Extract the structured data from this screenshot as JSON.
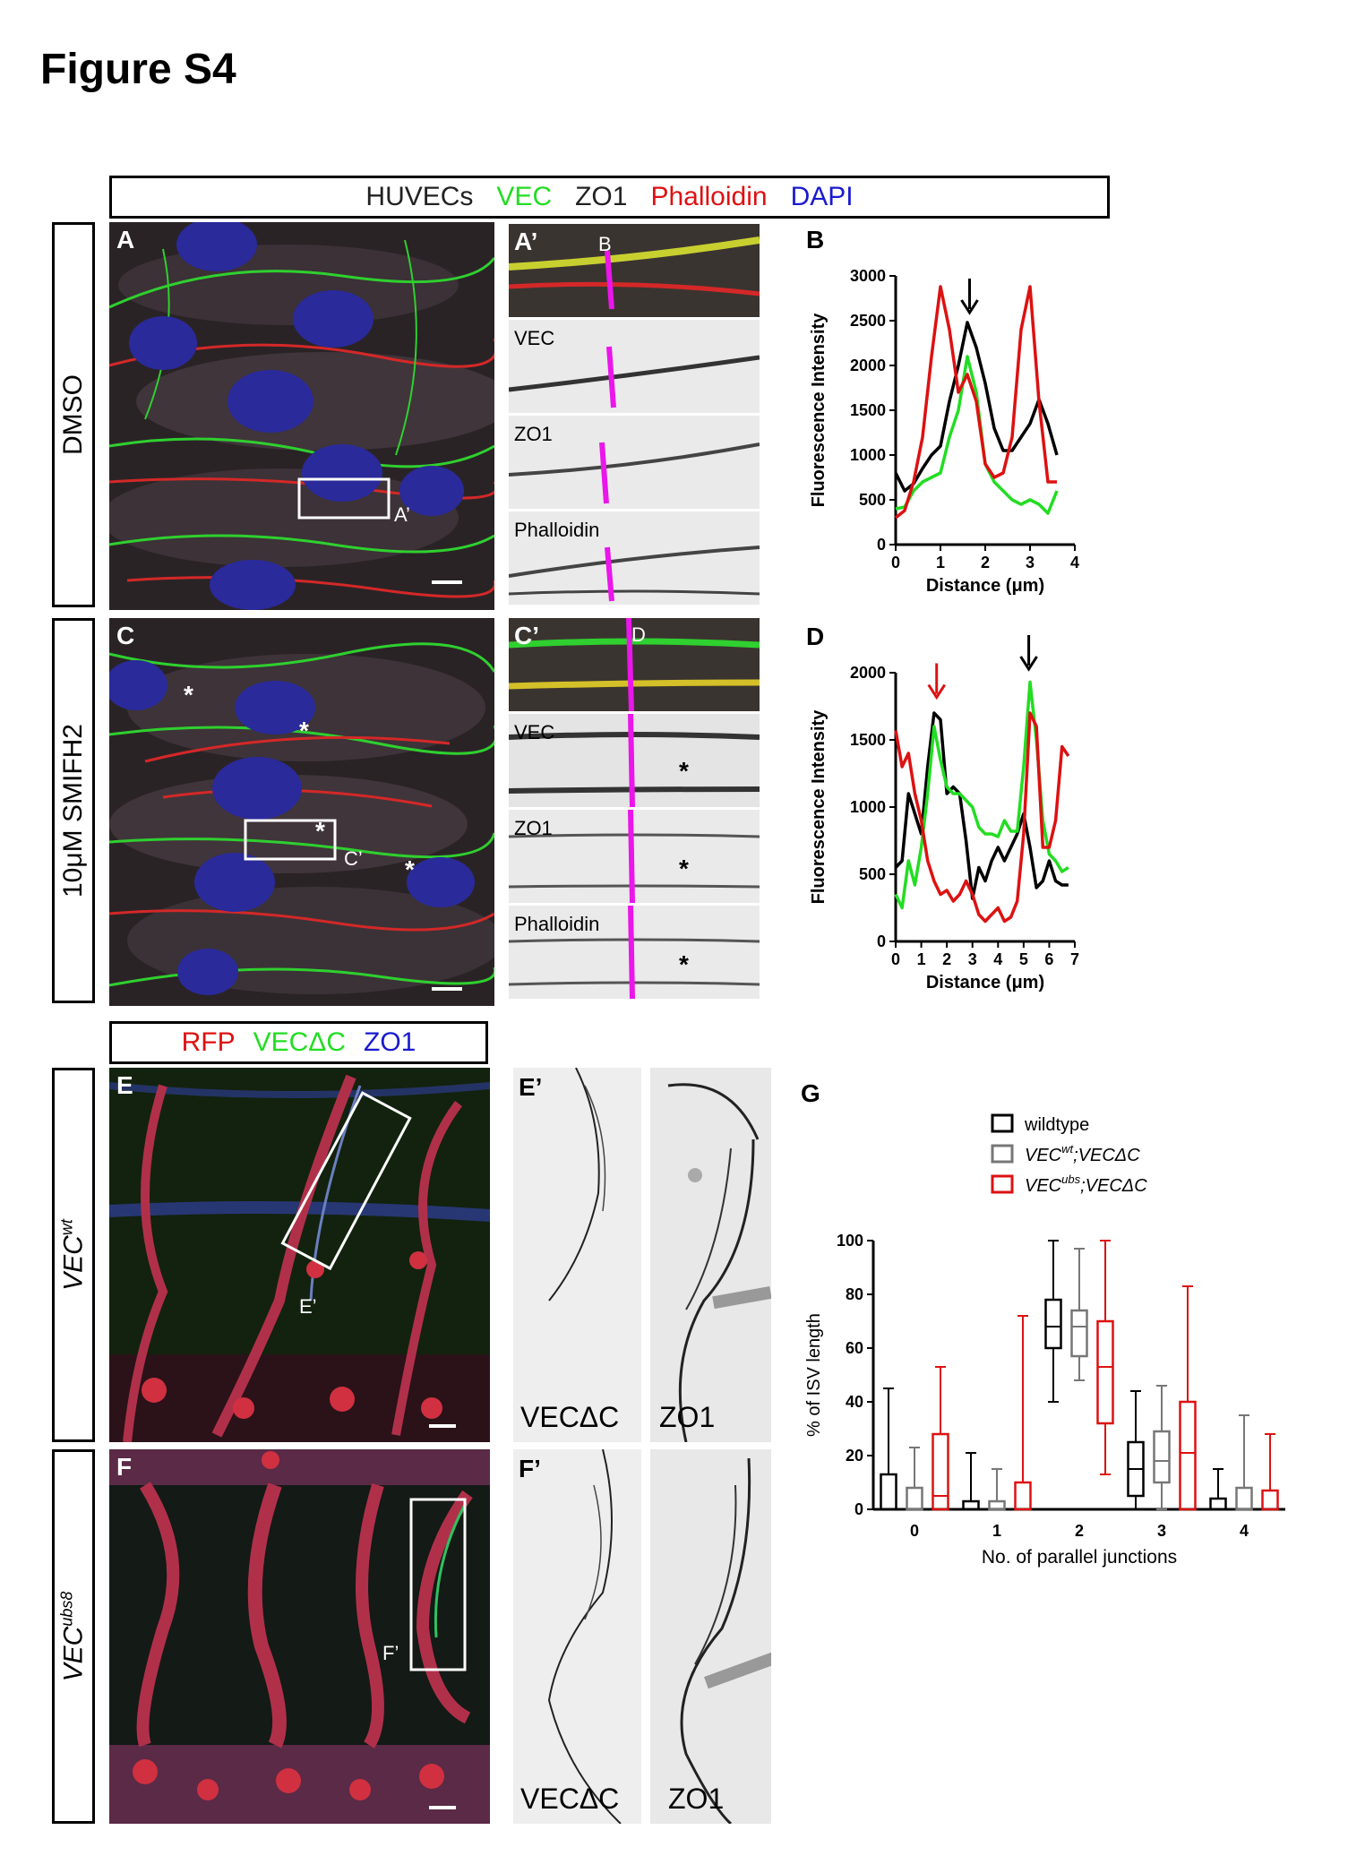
{
  "figure_title": "Figure S4",
  "top_header": {
    "items": [
      {
        "text": "HUVECs",
        "color": "#222222"
      },
      {
        "text": "VEC",
        "color": "#22dd22"
      },
      {
        "text": "ZO1",
        "color": "#222222"
      },
      {
        "text": "Phalloidin",
        "color": "#dd1111"
      },
      {
        "text": "DAPI",
        "color": "#1a1ad0"
      }
    ]
  },
  "row_labels": {
    "dmso": "DMSO",
    "smifh2": "10μM SMIFH2"
  },
  "panels": {
    "A": "A",
    "A_prime": "A’",
    "A_box": "A’",
    "B_marker": "B",
    "C": "C",
    "C_prime": "C’",
    "C_box": "C’",
    "D_marker": "D",
    "E": "E",
    "E_prime": "E’",
    "E_box": "E’",
    "F": "F",
    "F_prime": "F’",
    "F_box": "F’",
    "star": "*"
  },
  "inset_labels": {
    "vec": "VEC",
    "zo1": "ZO1",
    "phalloidin": "Phalloidin"
  },
  "zebrafish_header": {
    "items": [
      {
        "text": "RFP",
        "color": "#dd1111"
      },
      {
        "text": "VECΔC",
        "color": "#22dd22"
      },
      {
        "text": "ZO1",
        "color": "#1a1ad0"
      }
    ]
  },
  "zebrafish_rows": {
    "e_main": "VEC",
    "e_sup": "wt",
    "f_main": "VEC",
    "f_sup": "ubs8"
  },
  "bw_captions": {
    "e_left": "VECΔC",
    "e_right": "ZO1",
    "f_left": "VECΔC",
    "f_right": "ZO1"
  },
  "chart_data": [
    {
      "type": "line",
      "panel": "B",
      "xlabel": "Distance (μm)",
      "ylabel": "Fluorescence Intensity",
      "xlim": [
        0,
        4
      ],
      "ylim": [
        0,
        3000
      ],
      "xticks": [
        0,
        1,
        2,
        3,
        4
      ],
      "yticks": [
        0,
        500,
        1000,
        1500,
        2000,
        2500,
        3000
      ],
      "arrows": [
        {
          "x": 1.65,
          "y": 2550,
          "color": "#000000"
        }
      ],
      "series": [
        {
          "color": "#000000",
          "x": [
            0,
            0.2,
            0.4,
            0.6,
            0.8,
            1.0,
            1.2,
            1.4,
            1.6,
            1.8,
            2.0,
            2.2,
            2.4,
            2.6,
            2.8,
            3.0,
            3.2,
            3.4,
            3.6
          ],
          "y": [
            800,
            600,
            680,
            850,
            1000,
            1100,
            1600,
            2000,
            2480,
            2200,
            1800,
            1300,
            1050,
            1050,
            1200,
            1350,
            1620,
            1350,
            1000
          ]
        },
        {
          "color": "#22dd22",
          "x": [
            0,
            0.2,
            0.4,
            0.6,
            0.8,
            1.0,
            1.2,
            1.4,
            1.6,
            1.8,
            2.0,
            2.2,
            2.4,
            2.6,
            2.8,
            3.0,
            3.2,
            3.4,
            3.6
          ],
          "y": [
            400,
            420,
            600,
            700,
            750,
            800,
            1200,
            1500,
            2100,
            1700,
            900,
            700,
            600,
            500,
            450,
            500,
            450,
            350,
            600
          ]
        },
        {
          "color": "#dd1111",
          "x": [
            0,
            0.2,
            0.4,
            0.6,
            0.8,
            1.0,
            1.2,
            1.4,
            1.6,
            1.8,
            2.0,
            2.2,
            2.4,
            2.6,
            2.8,
            3.0,
            3.2,
            3.4,
            3.6
          ],
          "y": [
            300,
            380,
            700,
            1200,
            2100,
            2880,
            2400,
            1700,
            1900,
            1600,
            900,
            750,
            800,
            1200,
            2400,
            2880,
            1600,
            700,
            700
          ]
        }
      ]
    },
    {
      "type": "line",
      "panel": "D",
      "xlabel": "Distance (μm)",
      "ylabel": "Fluorescence Intensity",
      "xlim": [
        0,
        7
      ],
      "ylim": [
        0,
        2000
      ],
      "xticks": [
        0,
        1,
        2,
        3,
        4,
        5,
        6,
        7
      ],
      "yticks": [
        0,
        500,
        1000,
        1500,
        2000
      ],
      "arrows": [
        {
          "x": 1.6,
          "y": 1790,
          "color": "#dd1111"
        },
        {
          "x": 5.2,
          "y": 2000,
          "color": "#000000"
        }
      ],
      "series": [
        {
          "color": "#000000",
          "x": [
            0,
            0.25,
            0.5,
            0.75,
            1,
            1.25,
            1.5,
            1.75,
            2,
            2.25,
            2.5,
            2.75,
            3,
            3.25,
            3.5,
            3.75,
            4,
            4.25,
            4.5,
            4.75,
            5,
            5.25,
            5.5,
            5.75,
            6,
            6.25,
            6.5,
            6.75
          ],
          "y": [
            550,
            600,
            1100,
            950,
            800,
            1300,
            1700,
            1650,
            1100,
            1150,
            1100,
            750,
            320,
            550,
            450,
            600,
            700,
            600,
            700,
            800,
            950,
            700,
            400,
            450,
            600,
            450,
            420,
            420
          ]
        },
        {
          "color": "#22dd22",
          "x": [
            0,
            0.25,
            0.5,
            0.75,
            1,
            1.25,
            1.5,
            1.75,
            2,
            2.25,
            2.5,
            2.75,
            3,
            3.25,
            3.5,
            3.75,
            4,
            4.25,
            4.5,
            4.75,
            5,
            5.25,
            5.5,
            5.75,
            6,
            6.25,
            6.5,
            6.75
          ],
          "y": [
            350,
            250,
            600,
            420,
            700,
            1100,
            1600,
            1350,
            1150,
            1100,
            1100,
            1050,
            1000,
            850,
            800,
            800,
            780,
            900,
            820,
            820,
            1300,
            1930,
            1500,
            900,
            650,
            600,
            520,
            550
          ]
        },
        {
          "color": "#dd1111",
          "x": [
            0,
            0.25,
            0.5,
            0.75,
            1,
            1.25,
            1.5,
            1.75,
            2,
            2.25,
            2.5,
            2.75,
            3,
            3.25,
            3.5,
            3.75,
            4,
            4.25,
            4.5,
            4.75,
            5,
            5.25,
            5.5,
            5.75,
            6,
            6.25,
            6.5,
            6.75
          ],
          "y": [
            1570,
            1300,
            1400,
            1100,
            900,
            600,
            450,
            350,
            380,
            300,
            350,
            450,
            350,
            200,
            150,
            200,
            250,
            150,
            180,
            300,
            800,
            1700,
            1600,
            700,
            700,
            900,
            1450,
            1380
          ]
        }
      ]
    },
    {
      "type": "box",
      "panel": "G",
      "xlabel": "No. of parallel junctions",
      "ylabel": "% of ISV length",
      "ylim": [
        0,
        100
      ],
      "yticks": [
        0,
        20,
        40,
        60,
        80,
        100
      ],
      "categories": [
        "0",
        "1",
        "2",
        "3",
        "4"
      ],
      "legend": [
        {
          "name": "wildtype",
          "sup": "",
          "suffix": "",
          "color": "#000000"
        },
        {
          "name": "VEC",
          "sup": "wt",
          "suffix": ";VECΔC",
          "color": "#777777"
        },
        {
          "name": "VEC",
          "sup": "ubs",
          "suffix": ";VECΔC",
          "color": "#dd1111"
        }
      ],
      "series": [
        {
          "color": "#000000",
          "boxes": [
            [
              0,
              0,
              0,
              13,
              45
            ],
            [
              0,
              0,
              0,
              3,
              21
            ],
            [
              40,
              60,
              68,
              78,
              100
            ],
            [
              0,
              5,
              15,
              25,
              44
            ],
            [
              0,
              0,
              0,
              4,
              15
            ]
          ]
        },
        {
          "color": "#777777",
          "boxes": [
            [
              0,
              0,
              0,
              8,
              23
            ],
            [
              0,
              0,
              0,
              3,
              15
            ],
            [
              48,
              57,
              68,
              74,
              97
            ],
            [
              0,
              10,
              18,
              29,
              46
            ],
            [
              0,
              0,
              0,
              8,
              35
            ]
          ]
        },
        {
          "color": "#dd1111",
          "boxes": [
            [
              0,
              0,
              5,
              28,
              53
            ],
            [
              0,
              0,
              0,
              10,
              72
            ],
            [
              13,
              32,
              53,
              70,
              100
            ],
            [
              0,
              0,
              21,
              40,
              83
            ],
            [
              0,
              0,
              0,
              7,
              28
            ]
          ]
        }
      ]
    }
  ]
}
